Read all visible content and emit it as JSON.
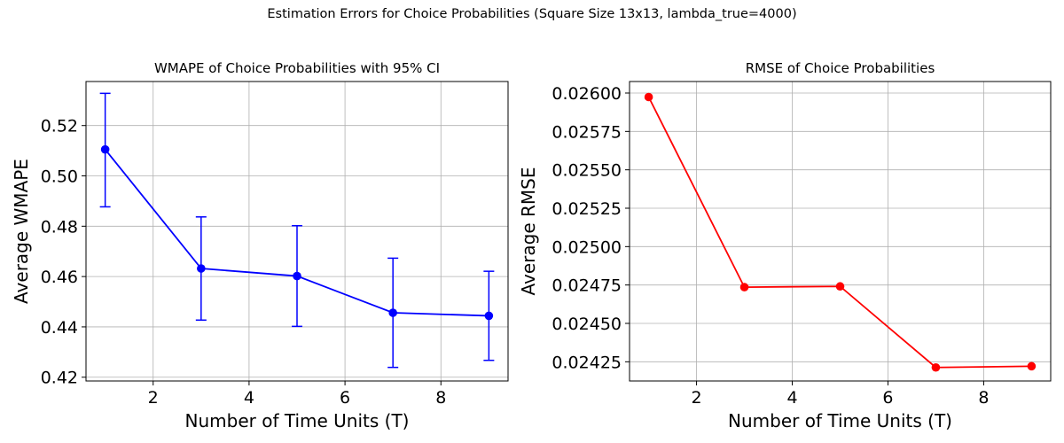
{
  "figure": {
    "suptitle": "Estimation Errors for Choice Probabilities (Square Size 13x13, lambda_true=4000)"
  },
  "chart_data": [
    {
      "type": "line",
      "title": "WMAPE of Choice Probabilities with 95% CI",
      "xlabel": "Number of Time Units (T)",
      "ylabel": "Average WMAPE",
      "xlim": [
        0.6,
        9.4
      ],
      "ylim": [
        0.4185,
        0.5375
      ],
      "xticks": [
        2,
        4,
        6,
        8
      ],
      "xtick_labels": [
        "2",
        "4",
        "6",
        "8"
      ],
      "yticks": [
        0.42,
        0.44,
        0.46,
        0.48,
        0.5,
        0.52
      ],
      "ytick_labels": [
        "0.42",
        "0.44",
        "0.46",
        "0.48",
        "0.50",
        "0.52"
      ],
      "grid": true,
      "color": "#0000ff",
      "series": [
        {
          "x": [
            1,
            3,
            5,
            7,
            9
          ],
          "values": [
            0.5105,
            0.4632,
            0.4602,
            0.4456,
            0.4444
          ],
          "ci_lower": [
            0.4877,
            0.4427,
            0.4402,
            0.4239,
            0.4267
          ],
          "ci_upper": [
            0.5328,
            0.4837,
            0.4802,
            0.4673,
            0.4621
          ]
        }
      ]
    },
    {
      "type": "line",
      "title": "RMSE of Choice Probabilities",
      "xlabel": "Number of Time Units (T)",
      "ylabel": "Average RMSE",
      "xlim": [
        0.6,
        9.4
      ],
      "ylim": [
        0.024125,
        0.026075
      ],
      "xticks": [
        2,
        4,
        6,
        8
      ],
      "xtick_labels": [
        "2",
        "4",
        "6",
        "8"
      ],
      "yticks": [
        0.02425,
        0.0245,
        0.02475,
        0.025,
        0.02525,
        0.0255,
        0.02575,
        0.026
      ],
      "ytick_labels": [
        "0.02425",
        "0.02450",
        "0.02475",
        "0.02500",
        "0.02525",
        "0.02550",
        "0.02575",
        "0.02600"
      ],
      "grid": true,
      "color": "#ff0000",
      "series": [
        {
          "x": [
            1,
            3,
            5,
            7,
            9
          ],
          "values": [
            0.025974,
            0.024736,
            0.024741,
            0.024213,
            0.024221
          ]
        }
      ]
    }
  ]
}
